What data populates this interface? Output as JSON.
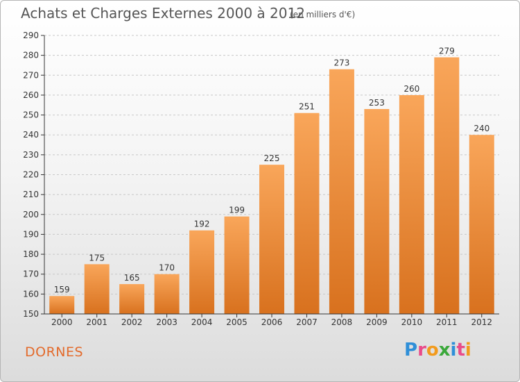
{
  "header": {
    "title": "Achats et Charges Externes 2000 à 2012",
    "unit_note": "(en milliers d'€)"
  },
  "footer": {
    "commune": "DORNES",
    "logo": {
      "letters": [
        "P",
        "r",
        "o",
        "x",
        "i",
        "t",
        "i"
      ],
      "colors": [
        "#2f8fd8",
        "#e94b8a",
        "#f29b1d",
        "#3aa83a",
        "#2f8fd8",
        "#e94b8a",
        "#f29b1d"
      ]
    }
  },
  "colors": {
    "bar_top": "#f9a65a",
    "bar_bottom": "#d8711e",
    "axis": "#333333",
    "grid": "#c8c8c8"
  },
  "chart_data": {
    "type": "bar",
    "title": "Achats et Charges Externes 2000 à 2012",
    "subtitle": "(en milliers d'€)",
    "categories": [
      "2000",
      "2001",
      "2002",
      "2003",
      "2004",
      "2005",
      "2006",
      "2007",
      "2008",
      "2009",
      "2010",
      "2011",
      "2012"
    ],
    "values": [
      159,
      175,
      165,
      170,
      192,
      199,
      225,
      251,
      273,
      253,
      260,
      279,
      240
    ],
    "ylim": [
      150,
      290
    ],
    "yticks": [
      150,
      160,
      170,
      180,
      190,
      200,
      210,
      220,
      230,
      240,
      250,
      260,
      270,
      280,
      290
    ],
    "grid": true,
    "data_labels": true
  }
}
